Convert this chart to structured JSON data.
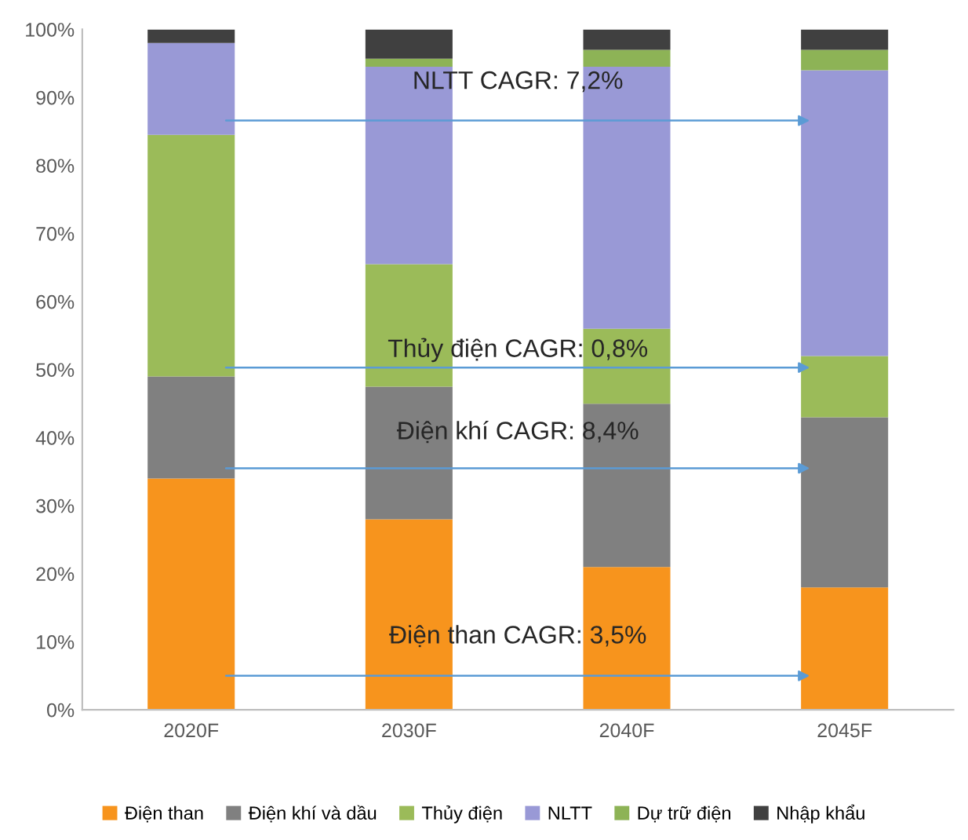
{
  "chart_data": {
    "type": "bar",
    "stacked": true,
    "categories": [
      "2020F",
      "2030F",
      "2040F",
      "2045F"
    ],
    "series": [
      {
        "name": "Điện than",
        "color": "#f7941d",
        "values": [
          34,
          28,
          21,
          18
        ]
      },
      {
        "name": "Điện khí và dầu",
        "color": "#808080",
        "values": [
          15,
          19.5,
          24,
          25
        ]
      },
      {
        "name": "Thủy điện",
        "color": "#9bbb59",
        "values": [
          35.5,
          18,
          11,
          9
        ]
      },
      {
        "name": "NLTT",
        "color": "#9999d6",
        "values": [
          13.5,
          29,
          38.5,
          42
        ]
      },
      {
        "name": "Dự trữ điện",
        "color": "#8db356",
        "values": [
          0,
          1.2,
          2.5,
          3
        ]
      },
      {
        "name": "Nhập khẩu",
        "color": "#404040",
        "values": [
          2,
          4.3,
          3,
          3
        ]
      }
    ],
    "ylim": [
      0,
      100
    ],
    "yticks": [
      {
        "value": 0,
        "label": "0%"
      },
      {
        "value": 10,
        "label": "10%"
      },
      {
        "value": 20,
        "label": "20%"
      },
      {
        "value": 30,
        "label": "30%"
      },
      {
        "value": 40,
        "label": "40%"
      },
      {
        "value": 50,
        "label": "50%"
      },
      {
        "value": 60,
        "label": "60%"
      },
      {
        "value": 70,
        "label": "70%"
      },
      {
        "value": 80,
        "label": "80%"
      },
      {
        "value": 90,
        "label": "90%"
      },
      {
        "value": 100,
        "label": "100%"
      }
    ],
    "grid": false,
    "legend": "bottom",
    "annotations": [
      "NLTT CAGR: 7,2%",
      "Thủy điện CAGR: 0,8%",
      "Điện khí CAGR: 8,4%",
      "Điện than CAGR: 3,5%"
    ]
  }
}
